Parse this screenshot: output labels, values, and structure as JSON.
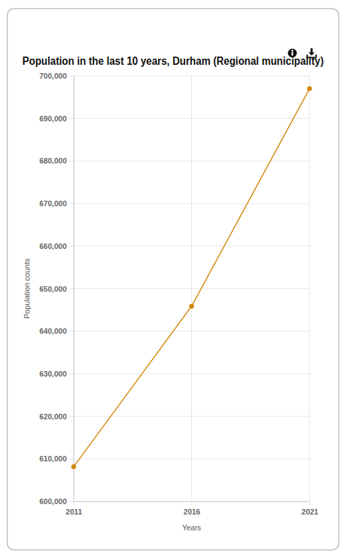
{
  "chart_data": {
    "type": "line",
    "title": "Population in the last 10 years, Durham (Regional municipality)",
    "x_label": "Years",
    "y_label": "Population counts",
    "x": [
      2011,
      2016,
      2021
    ],
    "values": [
      608124,
      645862,
      696992
    ],
    "color": "#d4860b",
    "marker": "circle",
    "xlim": [
      2011,
      2021
    ],
    "xticks": [
      2011,
      2016,
      2021
    ],
    "ylim": [
      600000,
      700000
    ],
    "yticks": [
      {
        "value": 600000,
        "label": "600,000"
      },
      {
        "value": 610000,
        "label": "610,000"
      },
      {
        "value": 620000,
        "label": "620,000"
      },
      {
        "value": 630000,
        "label": "630,000"
      },
      {
        "value": 640000,
        "label": "640,000"
      },
      {
        "value": 650000,
        "label": "650,000"
      },
      {
        "value": 660000,
        "label": "660,000"
      },
      {
        "value": 670000,
        "label": "670,000"
      },
      {
        "value": 680000,
        "label": "680,000"
      },
      {
        "value": 690000,
        "label": "690,000"
      },
      {
        "value": 700000,
        "label": "700,000"
      }
    ],
    "grid": true
  }
}
